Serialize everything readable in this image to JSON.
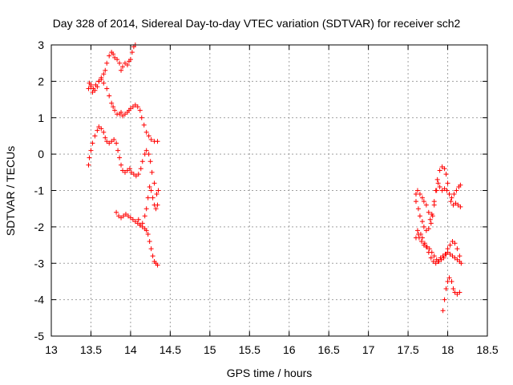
{
  "chart_data": {
    "type": "scatter",
    "title": "Day 328 of 2014, Sidereal Day-to-day VTEC variation (SDTVAR) for receiver sch2",
    "xlabel": "GPS time / hours",
    "ylabel": "SDTVAR / TECUs",
    "xlim": [
      13,
      18.5
    ],
    "ylim": [
      -5,
      3
    ],
    "xticks": [
      "13",
      "13.5",
      "14",
      "14.5",
      "15",
      "15.5",
      "16",
      "16.5",
      "17",
      "17.5",
      "18",
      "18.5"
    ],
    "yticks": [
      "-5",
      "-4",
      "-3",
      "-2",
      "-1",
      "0",
      "1",
      "2",
      "3"
    ],
    "grid": true,
    "marker": "plus",
    "color": "#ff0000",
    "series": [
      {
        "points": [
          [
            13.47,
            1.8
          ],
          [
            13.5,
            1.9
          ],
          [
            13.52,
            1.7
          ],
          [
            13.55,
            1.75
          ],
          [
            13.58,
            1.85
          ],
          [
            13.6,
            2.0
          ],
          [
            13.63,
            2.1
          ],
          [
            13.66,
            2.2
          ],
          [
            13.68,
            2.3
          ],
          [
            13.7,
            2.5
          ],
          [
            13.73,
            2.7
          ],
          [
            13.76,
            2.8
          ],
          [
            13.78,
            2.75
          ],
          [
            13.8,
            2.65
          ],
          [
            13.83,
            2.6
          ],
          [
            13.86,
            2.5
          ],
          [
            13.88,
            2.3
          ],
          [
            13.9,
            2.4
          ],
          [
            13.93,
            2.5
          ],
          [
            13.96,
            2.45
          ],
          [
            13.98,
            2.55
          ],
          [
            14.0,
            2.6
          ],
          [
            14.02,
            2.8
          ],
          [
            14.04,
            2.95
          ],
          [
            14.06,
            3.0
          ]
        ]
      },
      {
        "points": [
          [
            13.48,
            1.95
          ],
          [
            13.5,
            1.85
          ],
          [
            13.53,
            1.8
          ],
          [
            13.56,
            1.9
          ],
          [
            13.6,
            2.0
          ],
          [
            13.63,
            2.05
          ],
          [
            13.66,
            1.95
          ],
          [
            13.7,
            1.8
          ],
          [
            13.73,
            1.6
          ],
          [
            13.76,
            1.4
          ],
          [
            13.78,
            1.3
          ],
          [
            13.8,
            1.2
          ],
          [
            13.83,
            1.1
          ],
          [
            13.86,
            1.1
          ],
          [
            13.88,
            1.15
          ],
          [
            13.9,
            1.05
          ],
          [
            13.93,
            1.1
          ],
          [
            13.96,
            1.15
          ],
          [
            13.98,
            1.2
          ],
          [
            14.0,
            1.25
          ],
          [
            14.03,
            1.3
          ],
          [
            14.06,
            1.35
          ],
          [
            14.09,
            1.3
          ],
          [
            14.12,
            1.2
          ],
          [
            14.14,
            1.0
          ],
          [
            14.17,
            0.8
          ],
          [
            14.2,
            0.6
          ],
          [
            14.23,
            0.5
          ],
          [
            14.26,
            0.4
          ],
          [
            14.3,
            0.35
          ],
          [
            14.34,
            0.35
          ]
        ]
      },
      {
        "points": [
          [
            13.47,
            -0.3
          ],
          [
            13.48,
            -0.1
          ],
          [
            13.5,
            0.1
          ],
          [
            13.52,
            0.3
          ],
          [
            13.55,
            0.5
          ],
          [
            13.58,
            0.65
          ],
          [
            13.6,
            0.75
          ],
          [
            13.63,
            0.7
          ],
          [
            13.66,
            0.6
          ],
          [
            13.68,
            0.45
          ],
          [
            13.7,
            0.35
          ],
          [
            13.73,
            0.3
          ],
          [
            13.76,
            0.35
          ],
          [
            13.79,
            0.4
          ],
          [
            13.82,
            0.3
          ],
          [
            13.84,
            0.1
          ],
          [
            13.86,
            -0.1
          ],
          [
            13.88,
            -0.3
          ],
          [
            13.9,
            -0.45
          ],
          [
            13.93,
            -0.5
          ],
          [
            13.96,
            -0.45
          ],
          [
            13.99,
            -0.4
          ],
          [
            14.01,
            -0.5
          ],
          [
            14.04,
            -0.55
          ],
          [
            14.07,
            -0.6
          ],
          [
            14.1,
            -0.55
          ],
          [
            14.13,
            -0.4
          ],
          [
            14.15,
            -0.2
          ],
          [
            14.18,
            0.0
          ],
          [
            14.2,
            0.1
          ],
          [
            14.23,
            0.0
          ],
          [
            14.25,
            -0.2
          ],
          [
            14.27,
            -0.5
          ],
          [
            14.3,
            -0.8
          ],
          [
            14.33,
            -1.1
          ],
          [
            14.35,
            -1.0
          ]
        ]
      },
      {
        "points": [
          [
            13.82,
            -1.6
          ],
          [
            13.85,
            -1.7
          ],
          [
            13.88,
            -1.75
          ],
          [
            13.91,
            -1.7
          ],
          [
            13.94,
            -1.65
          ],
          [
            13.97,
            -1.7
          ],
          [
            14.0,
            -1.75
          ],
          [
            14.03,
            -1.8
          ],
          [
            14.06,
            -1.85
          ],
          [
            14.09,
            -1.9
          ],
          [
            14.12,
            -1.95
          ],
          [
            14.15,
            -1.9
          ],
          [
            14.18,
            -1.7
          ],
          [
            14.2,
            -1.5
          ],
          [
            14.22,
            -1.2
          ],
          [
            14.24,
            -0.9
          ],
          [
            14.26,
            -1.0
          ],
          [
            14.28,
            -1.2
          ],
          [
            14.3,
            -1.4
          ],
          [
            14.32,
            -1.5
          ],
          [
            14.34,
            -1.4
          ]
        ]
      },
      {
        "points": [
          [
            14.1,
            -1.8
          ],
          [
            14.12,
            -1.95
          ],
          [
            14.15,
            -2.0
          ],
          [
            14.18,
            -2.05
          ],
          [
            14.2,
            -2.1
          ],
          [
            14.22,
            -2.2
          ],
          [
            14.24,
            -2.4
          ],
          [
            14.26,
            -2.6
          ],
          [
            14.28,
            -2.8
          ],
          [
            14.3,
            -2.95
          ],
          [
            14.32,
            -3.0
          ],
          [
            14.34,
            -3.05
          ]
        ]
      },
      {
        "points": [
          [
            17.6,
            -1.1
          ],
          [
            17.62,
            -1.0
          ],
          [
            17.65,
            -1.1
          ],
          [
            17.68,
            -1.2
          ],
          [
            17.7,
            -1.3
          ],
          [
            17.73,
            -1.4
          ],
          [
            17.76,
            -1.6
          ],
          [
            17.78,
            -1.8
          ],
          [
            17.8,
            -1.65
          ],
          [
            17.83,
            -1.3
          ],
          [
            17.86,
            -1.0
          ],
          [
            17.88,
            -0.8
          ],
          [
            17.9,
            -0.9
          ],
          [
            17.93,
            -1.0
          ],
          [
            17.96,
            -0.95
          ],
          [
            17.99,
            -1.0
          ],
          [
            18.02,
            -1.1
          ],
          [
            18.05,
            -1.2
          ],
          [
            18.08,
            -1.1
          ],
          [
            18.11,
            -1.0
          ],
          [
            18.14,
            -0.9
          ],
          [
            18.16,
            -0.85
          ]
        ]
      },
      {
        "points": [
          [
            17.6,
            -1.3
          ],
          [
            17.63,
            -1.5
          ],
          [
            17.65,
            -1.7
          ],
          [
            17.68,
            -1.85
          ],
          [
            17.7,
            -2.0
          ],
          [
            17.73,
            -2.1
          ],
          [
            17.76,
            -2.05
          ],
          [
            17.79,
            -1.9
          ],
          [
            17.81,
            -1.7
          ],
          [
            17.83,
            -1.4
          ],
          [
            17.85,
            -1.0
          ],
          [
            17.87,
            -0.7
          ],
          [
            17.9,
            -0.45
          ],
          [
            17.93,
            -0.35
          ],
          [
            17.96,
            -0.4
          ],
          [
            17.98,
            -0.55
          ],
          [
            18.0,
            -0.8
          ],
          [
            18.02,
            -1.1
          ],
          [
            18.04,
            -1.3
          ],
          [
            18.07,
            -1.4
          ],
          [
            18.1,
            -1.35
          ],
          [
            18.13,
            -1.4
          ],
          [
            18.16,
            -1.45
          ]
        ]
      },
      {
        "points": [
          [
            17.6,
            -2.3
          ],
          [
            17.63,
            -2.2
          ],
          [
            17.66,
            -2.2
          ],
          [
            17.68,
            -2.3
          ],
          [
            17.71,
            -2.45
          ],
          [
            17.74,
            -2.55
          ],
          [
            17.77,
            -2.6
          ],
          [
            17.8,
            -2.7
          ],
          [
            17.83,
            -2.8
          ],
          [
            17.86,
            -2.9
          ],
          [
            17.89,
            -2.95
          ],
          [
            17.92,
            -2.9
          ],
          [
            17.95,
            -2.85
          ],
          [
            17.98,
            -2.75
          ],
          [
            18.0,
            -2.6
          ],
          [
            18.03,
            -2.5
          ],
          [
            18.06,
            -2.4
          ],
          [
            18.09,
            -2.45
          ],
          [
            18.12,
            -2.6
          ],
          [
            18.15,
            -2.8
          ],
          [
            18.17,
            -3.0
          ]
        ]
      },
      {
        "points": [
          [
            17.62,
            -2.1
          ],
          [
            17.64,
            -2.3
          ],
          [
            17.67,
            -2.4
          ],
          [
            17.7,
            -2.5
          ],
          [
            17.73,
            -2.55
          ],
          [
            17.76,
            -2.7
          ],
          [
            17.79,
            -2.85
          ],
          [
            17.82,
            -2.95
          ],
          [
            17.85,
            -3.0
          ],
          [
            17.88,
            -2.95
          ],
          [
            17.91,
            -2.85
          ],
          [
            17.94,
            -2.8
          ],
          [
            17.97,
            -2.75
          ],
          [
            18.0,
            -2.7
          ],
          [
            18.03,
            -2.75
          ],
          [
            18.06,
            -2.8
          ],
          [
            18.09,
            -2.85
          ],
          [
            18.12,
            -2.9
          ],
          [
            18.15,
            -2.95
          ]
        ]
      },
      {
        "points": [
          [
            17.94,
            -4.3
          ],
          [
            17.96,
            -4.0
          ],
          [
            17.98,
            -3.7
          ],
          [
            18.0,
            -3.5
          ],
          [
            18.02,
            -3.4
          ],
          [
            18.05,
            -3.5
          ],
          [
            18.07,
            -3.7
          ],
          [
            18.09,
            -3.8
          ],
          [
            18.12,
            -3.85
          ],
          [
            18.15,
            -3.8
          ]
        ]
      }
    ]
  }
}
